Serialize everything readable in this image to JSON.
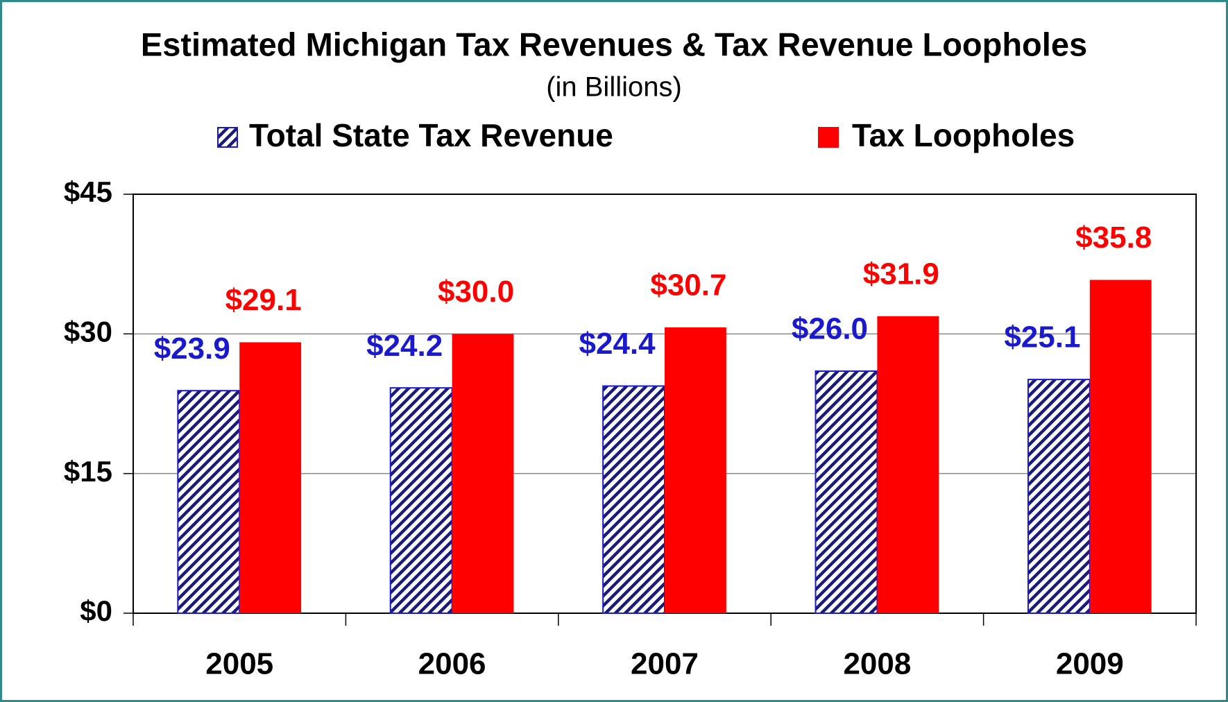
{
  "chart_data": {
    "type": "bar",
    "title": "Estimated Michigan Tax Revenues & Tax Revenue Loopholes",
    "subtitle": "(in Billions)",
    "categories": [
      "2005",
      "2006",
      "2007",
      "2008",
      "2009"
    ],
    "series": [
      {
        "name": "Total State Tax Revenue",
        "color": "#1a1acc",
        "pattern": "hatch",
        "values": [
          23.9,
          24.2,
          24.4,
          26.0,
          25.1
        ],
        "value_labels": [
          "$23.9",
          "$24.2",
          "$24.4",
          "$26.0",
          "$25.1"
        ]
      },
      {
        "name": "Tax Loopholes",
        "color": "#ff0000",
        "values": [
          29.1,
          30.0,
          30.7,
          31.9,
          35.8
        ],
        "value_labels": [
          "$29.1",
          "$30.0",
          "$30.7",
          "$31.9",
          "$35.8"
        ]
      }
    ],
    "ylim": [
      0,
      45
    ],
    "yticks": [
      {
        "value": 0,
        "label": "$0"
      },
      {
        "value": 15,
        "label": "$15"
      },
      {
        "value": 30,
        "label": "$30"
      },
      {
        "value": 45,
        "label": "$45"
      }
    ],
    "grid": true
  }
}
